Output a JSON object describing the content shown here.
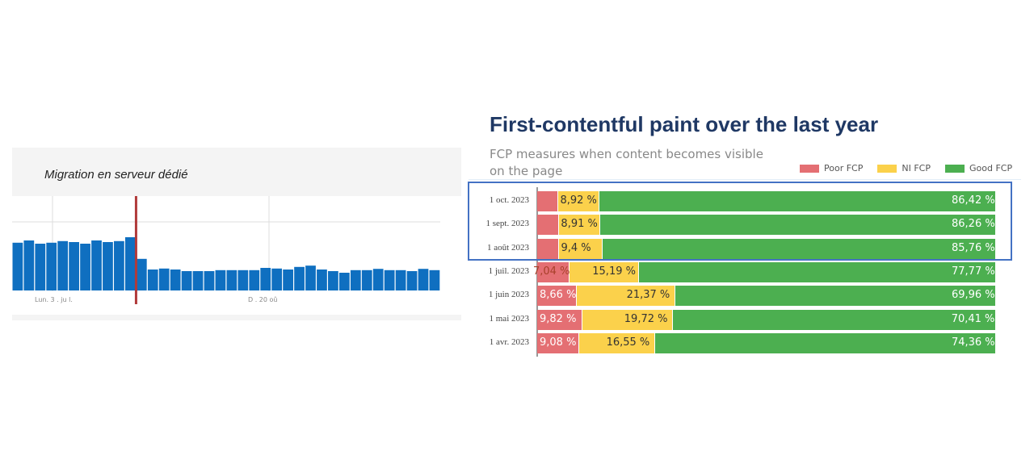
{
  "left_panel": {
    "annotation": "Migration en serveur dédié",
    "x_tick_labels": [
      "Lun. 3 . ju l.",
      "D . 20  oû"
    ],
    "bar_color": "#0f6fc0",
    "marker_color": "#b03a3a",
    "chart_data": {
      "type": "bar",
      "values": [
        148,
        155,
        145,
        148,
        153,
        150,
        145,
        155,
        150,
        153,
        165,
        98,
        65,
        68,
        65,
        60,
        60,
        60,
        63,
        63,
        63,
        63,
        70,
        68,
        65,
        73,
        77,
        65,
        60,
        55,
        63,
        63,
        67,
        63,
        63,
        60,
        67,
        63
      ],
      "marker_after_index": 10
    }
  },
  "right_panel": {
    "title": "First-contentful paint over the last year",
    "subtitle": "FCP measures when content becomes visible on the page",
    "legend": [
      {
        "label": "Poor FCP",
        "color": "#e46f73"
      },
      {
        "label": "NI FCP",
        "color": "#fbd14b"
      },
      {
        "label": "Good FCP",
        "color": "#4caf50"
      }
    ],
    "chart_data": {
      "type": "bar",
      "orientation": "horizontal-stacked-100",
      "categories": [
        "1 oct. 2023",
        "1 sept. 2023",
        "1 août 2023",
        "1 juil. 2023",
        "1 juin 2023",
        "1 mai 2023",
        "1 avr. 2023"
      ],
      "series": [
        {
          "name": "Poor FCP",
          "values": [
            4.66,
            4.83,
            4.84,
            7.04,
            8.66,
            9.82,
            9.08
          ],
          "labels": [
            "",
            "",
            "",
            "7,04 %",
            "8,66 %",
            "9,82 %",
            "9,08 %"
          ]
        },
        {
          "name": "NI FCP",
          "values": [
            8.92,
            8.91,
            9.4,
            15.19,
            21.37,
            19.72,
            16.55
          ],
          "labels": [
            "8,92 %",
            "8,91 %",
            "9,4 %",
            "15,19 %",
            "21,37 %",
            "19,72 %",
            "16,55 %"
          ]
        },
        {
          "name": "Good FCP",
          "values": [
            86.42,
            86.26,
            85.76,
            77.77,
            69.96,
            70.41,
            74.36
          ],
          "labels": [
            "86,42 %",
            "86,26 %",
            "85,76 %",
            "77,77 %",
            "69,96 %",
            "70,41 %",
            "74,36 %"
          ]
        }
      ],
      "highlighted_categories": [
        "1 oct. 2023",
        "1 sept. 2023",
        "1 août 2023"
      ]
    }
  }
}
